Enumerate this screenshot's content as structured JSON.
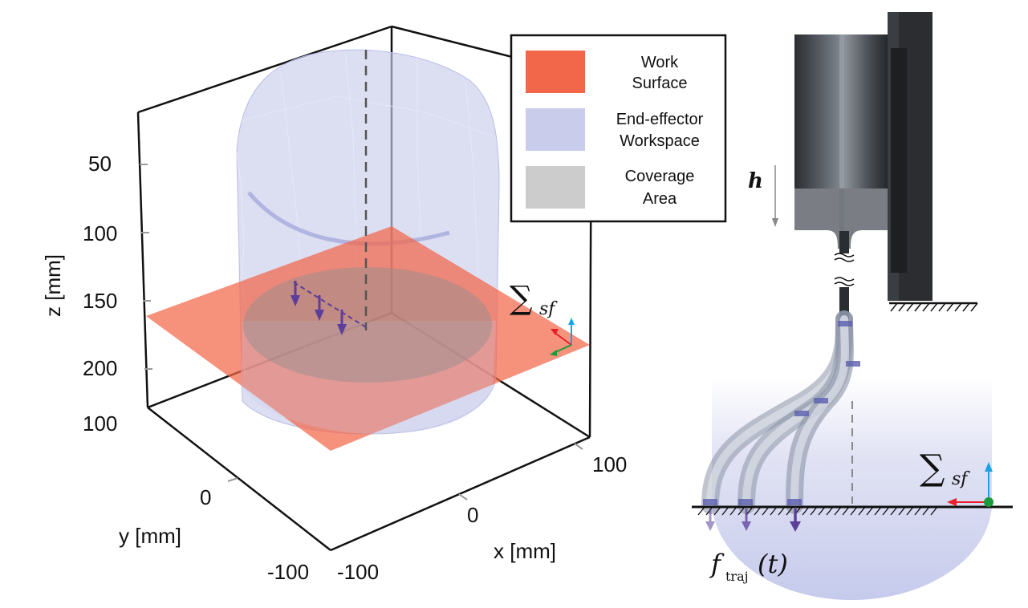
{
  "axes": {
    "x_label": "x [mm]",
    "y_label": "y [mm]",
    "z_label": "z [mm]",
    "x_ticks": [
      "-100",
      "0",
      "100"
    ],
    "y_ticks": [
      "-100",
      "0",
      "100"
    ],
    "z_ticks": [
      "50",
      "100",
      "150",
      "200"
    ]
  },
  "legend": {
    "items": [
      {
        "label_line1": "Work",
        "label_line2": "Surface",
        "color": "#f26749"
      },
      {
        "label_line1": "End-effector",
        "label_line2": "Workspace",
        "color": "#c9cceb"
      },
      {
        "label_line1": "Coverage",
        "label_line2": "Area",
        "color": "#cccccc"
      }
    ]
  },
  "frame_symbol_left": {
    "sym": "∑",
    "sub": "sf"
  },
  "frame_symbol_right": {
    "sym": "∑",
    "sub": "sf"
  },
  "height_symbol": "h",
  "trajectory_label": {
    "base": "f",
    "sub": "traj",
    "arg": "(t)"
  },
  "colors": {
    "work_surface": "#f26749",
    "workspace": "#c9cceb",
    "coverage": "#9a9a9a",
    "force_arrow": "#5b3f9a",
    "axis_red": "#e8202a",
    "axis_green": "#1a9a3a",
    "axis_blue": "#1ba3e0"
  }
}
